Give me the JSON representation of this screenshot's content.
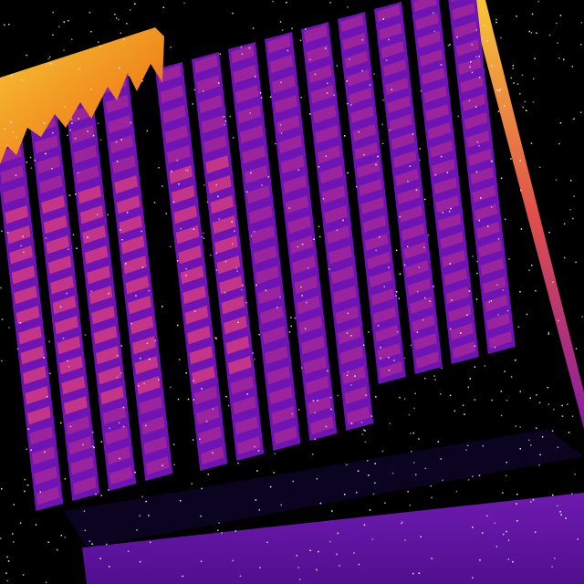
{
  "image": {
    "subject": "thermal-image-solar-panel-array",
    "palette": {
      "background": "#000000",
      "panel_base": "#6e14b4",
      "cell_warm": "#c0308c",
      "cell_hot": "#e0407a",
      "gap_dark": "#0a0420",
      "hotspot_orange": "#f59a1a",
      "hotspot_yellow": "#f7c637",
      "edge_red": "#e0504a",
      "ground_purple": "#7a1ec2",
      "noise": "#ffffff"
    },
    "panel_strings": 13,
    "cells_per_string": 20
  }
}
